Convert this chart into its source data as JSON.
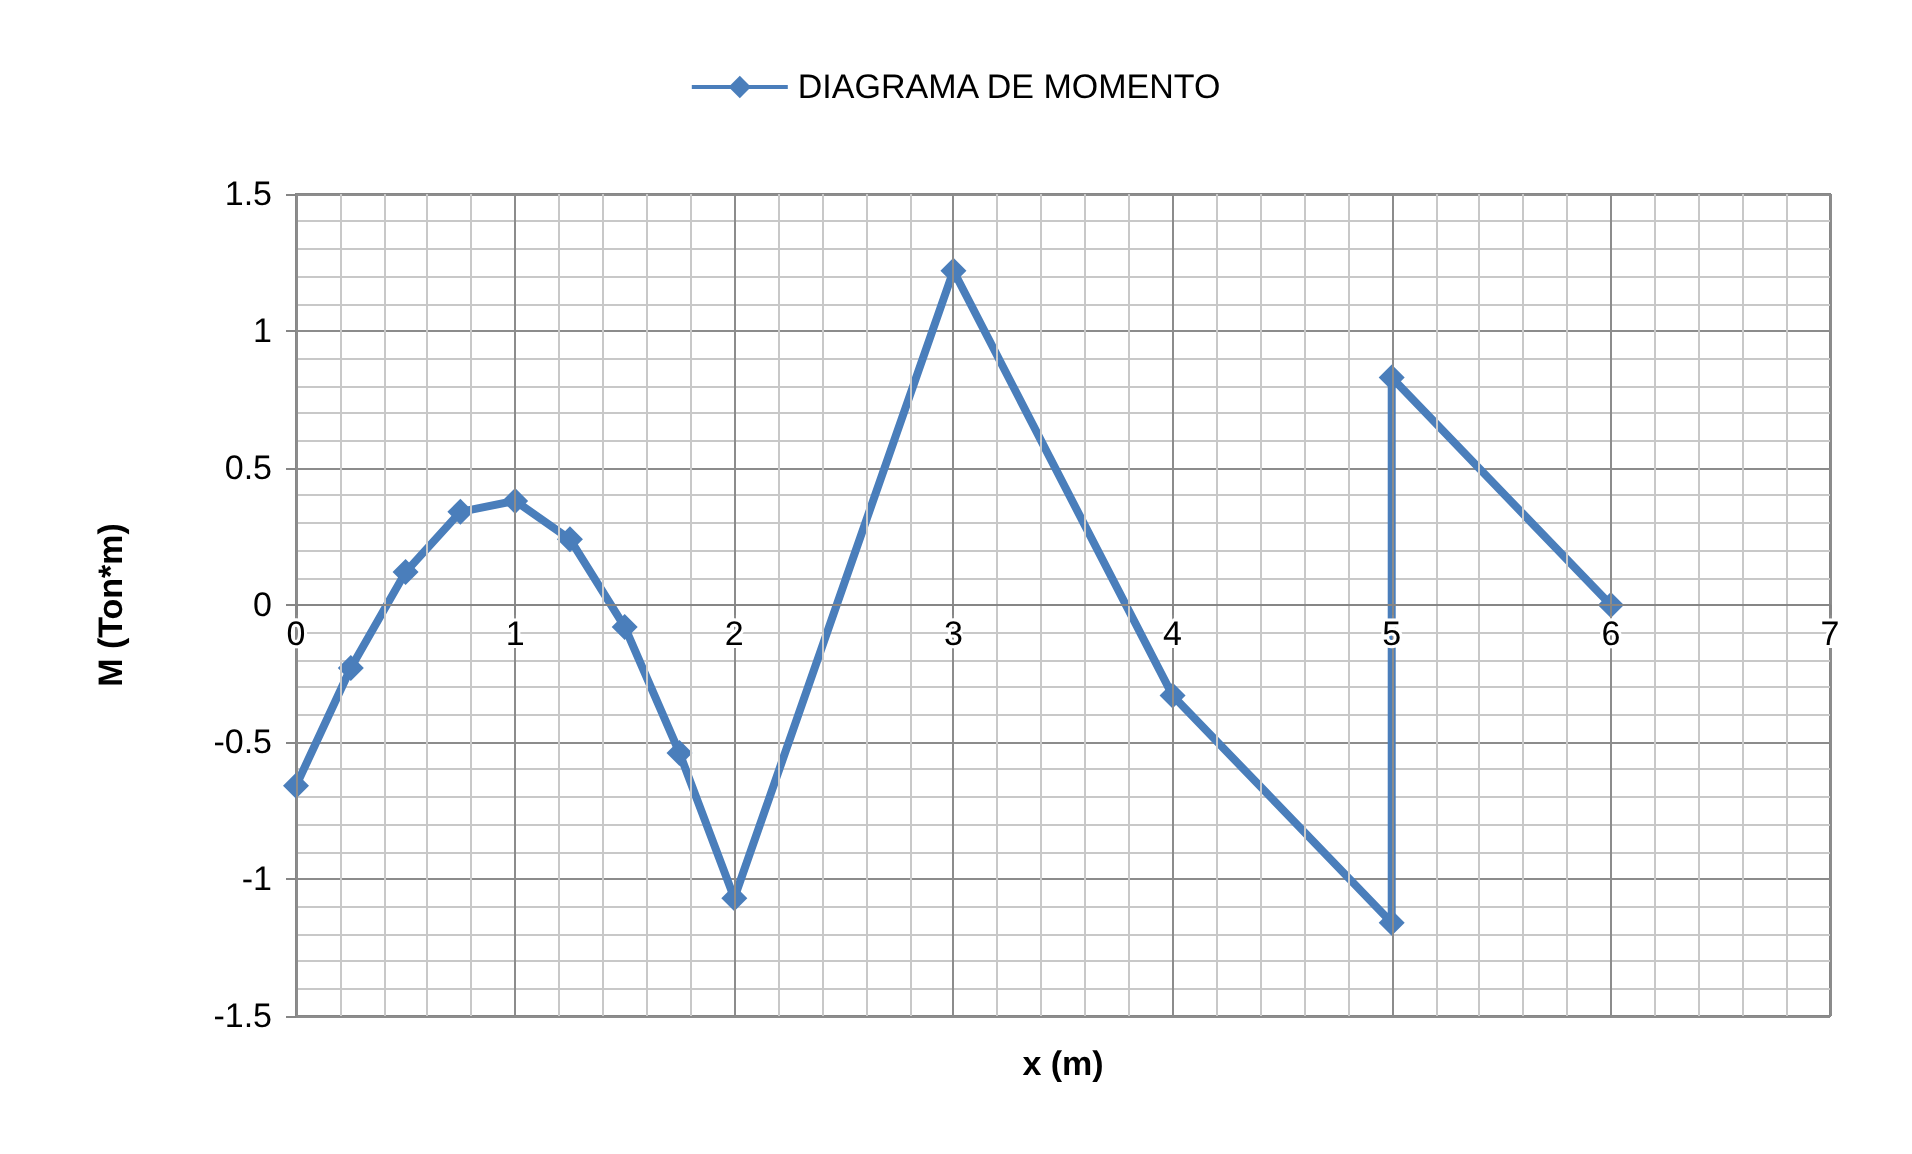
{
  "chart_data": {
    "type": "line",
    "xlabel": "x (m)",
    "ylabel": "M (Ton*m)",
    "series": [
      {
        "name": "DIAGRAMA DE MOMENTO",
        "color": "#4a7ebb",
        "x": [
          0,
          0.25,
          0.5,
          0.75,
          1,
          1.25,
          1.5,
          1.75,
          2,
          3,
          4,
          5,
          5,
          6
        ],
        "values": [
          -0.66,
          -0.23,
          0.12,
          0.34,
          0.38,
          0.24,
          -0.08,
          -0.54,
          -1.07,
          1.22,
          -0.33,
          -1.16,
          0.83,
          0
        ]
      }
    ],
    "xlim": [
      0,
      7
    ],
    "xticks": [
      0,
      1,
      2,
      3,
      4,
      5,
      6,
      7
    ],
    "ylim": [
      -1.5,
      1.5
    ],
    "yticks": [
      -1.5,
      -1,
      -0.5,
      0,
      0.5,
      1,
      1.5
    ],
    "grid": true,
    "legend": "top",
    "marker": "diamond",
    "line_style": "solid"
  }
}
